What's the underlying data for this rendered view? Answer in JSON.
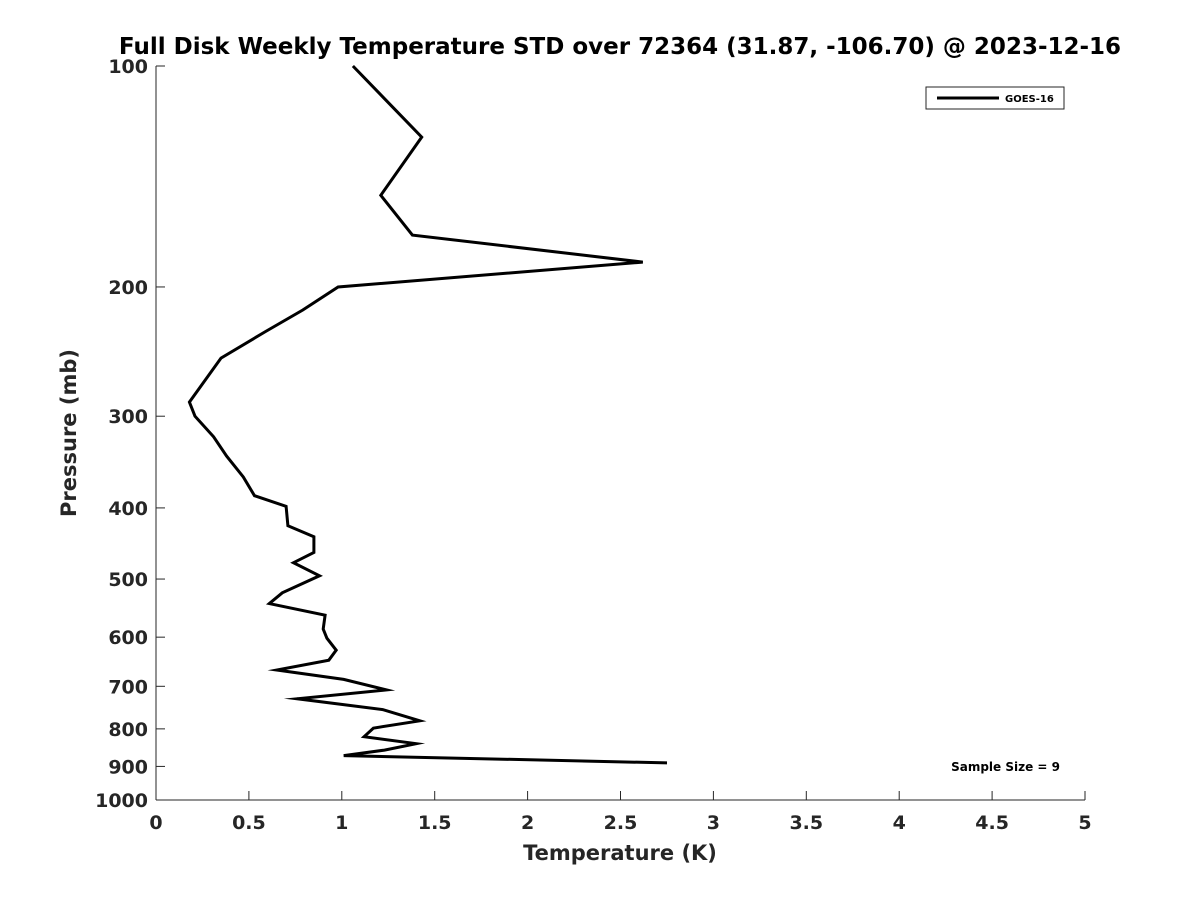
{
  "chart_data": {
    "type": "line",
    "title": "Full Disk Weekly Temperature STD over 72364 (31.87, -106.70) @ 2023-12-16",
    "xlabel": "Temperature (K)",
    "ylabel": "Pressure (mb)",
    "xlim": [
      0,
      5
    ],
    "ylim": [
      100,
      1000
    ],
    "y_scale": "log",
    "y_direction": "reversed",
    "x_ticks": [
      "0",
      "0.5",
      "1",
      "1.5",
      "2",
      "2.5",
      "3",
      "3.5",
      "4",
      "4.5",
      "5"
    ],
    "x_tick_values": [
      0,
      0.5,
      1,
      1.5,
      2,
      2.5,
      3,
      3.5,
      4,
      4.5,
      5
    ],
    "y_ticks": [
      "100",
      "200",
      "300",
      "400",
      "500",
      "600",
      "700",
      "800",
      "900",
      "1000"
    ],
    "y_tick_values": [
      100,
      200,
      300,
      400,
      500,
      600,
      700,
      800,
      900,
      1000
    ],
    "grid": false,
    "legend_position": "top-right",
    "annotation": "Sample Size = 9",
    "series": [
      {
        "name": "GOES-16",
        "color": "#000000",
        "points": [
          [
            1.06,
            100
          ],
          [
            1.43,
            125
          ],
          [
            1.21,
            150
          ],
          [
            1.38,
            170
          ],
          [
            2.62,
            185
          ],
          [
            0.98,
            200
          ],
          [
            0.79,
            215
          ],
          [
            0.59,
            230
          ],
          [
            0.35,
            250
          ],
          [
            0.18,
            287
          ],
          [
            0.21,
            300
          ],
          [
            0.31,
            320
          ],
          [
            0.38,
            340
          ],
          [
            0.47,
            363
          ],
          [
            0.53,
            385
          ],
          [
            0.7,
            398
          ],
          [
            0.71,
            423
          ],
          [
            0.85,
            438
          ],
          [
            0.85,
            460
          ],
          [
            0.74,
            475
          ],
          [
            0.88,
            495
          ],
          [
            0.68,
            522
          ],
          [
            0.61,
            540
          ],
          [
            0.91,
            560
          ],
          [
            0.9,
            585
          ],
          [
            0.92,
            602
          ],
          [
            0.97,
            625
          ],
          [
            0.93,
            645
          ],
          [
            0.65,
            665
          ],
          [
            1.01,
            685
          ],
          [
            1.24,
            708
          ],
          [
            0.76,
            728
          ],
          [
            1.22,
            753
          ],
          [
            1.42,
            780
          ],
          [
            1.17,
            798
          ],
          [
            1.12,
            820
          ],
          [
            1.4,
            838
          ],
          [
            1.23,
            855
          ],
          [
            1.01,
            870
          ],
          [
            2.75,
            890
          ]
        ]
      }
    ]
  }
}
